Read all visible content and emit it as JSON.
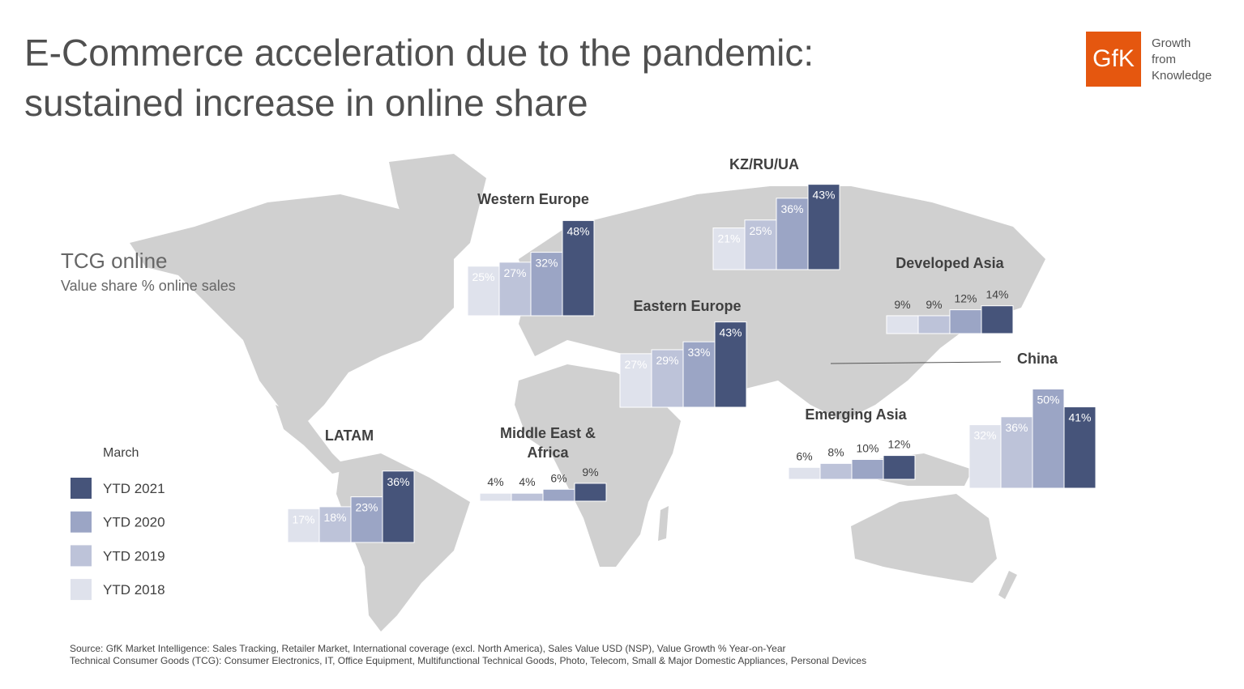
{
  "chart_data": {
    "type": "bar",
    "title": [
      "E-Commerce acceleration due to the pandemic:",
      "sustained increase in online share"
    ],
    "logo": "GfK",
    "tagline": [
      "Growth",
      "from",
      "Knowledge"
    ],
    "chart_title": "TCG online",
    "chart_subtitle": "Value share % online sales",
    "legend_title": "March",
    "categories": [
      "Western Europe",
      "KZ/RU/UA",
      "Developed Asia",
      "Eastern Europe",
      "China",
      "Emerging Asia",
      "Middle East & Africa",
      "LATAM"
    ],
    "series": [
      {
        "name": "YTD 2021",
        "color": "#46547a",
        "values": [
          48,
          43,
          14,
          43,
          41,
          12,
          9,
          36
        ],
        "value_labels": [
          "48%",
          "43%",
          "14%",
          "43%",
          "41%",
          "12%",
          "9%",
          "36%"
        ]
      },
      {
        "name": "YTD 2020",
        "color": "#9ba5c5",
        "values": [
          32,
          36,
          12,
          33,
          50,
          10,
          6,
          23
        ],
        "value_labels": [
          "32%",
          "36%",
          "12%",
          "33%",
          "50%",
          "10%",
          "6%",
          "23%"
        ]
      },
      {
        "name": "YTD 2019",
        "color": "#bdc3d9",
        "values": [
          27,
          25,
          9,
          29,
          36,
          8,
          4,
          18
        ],
        "value_labels": [
          "27%",
          "25%",
          "9%",
          "29%",
          "36%",
          "8%",
          "4%",
          "18%"
        ]
      },
      {
        "name": "YTD 2018",
        "color": "#dfe2ec",
        "values": [
          25,
          21,
          9,
          27,
          32,
          6,
          4,
          17
        ],
        "value_labels": [
          "25%",
          "21%",
          "9%",
          "27%",
          "32%",
          "6%",
          "4%",
          "17%"
        ]
      }
    ],
    "source": [
      "Source: GfK Market Intelligence: Sales Tracking, Retailer Market, International coverage (excl. North America), Sales Value USD (NSP), Value Growth % Year-on-Year",
      "Technical Consumer Goods (TCG): Consumer Electronics, IT, Office Equipment, Multifunctional Technical Goods, Photo, Telecom, Small & Major Domestic Appliances, Personal Devices"
    ]
  }
}
